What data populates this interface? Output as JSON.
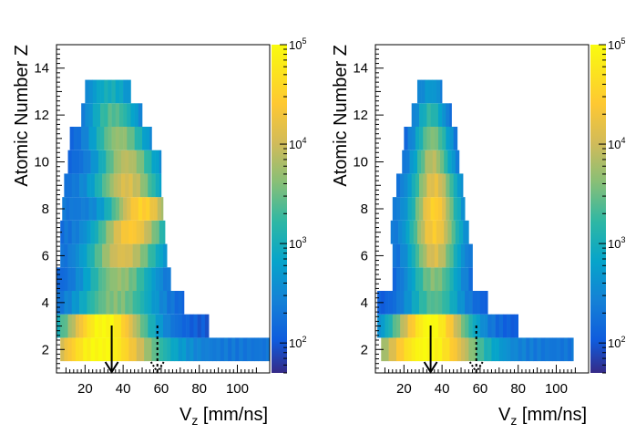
{
  "chart_data": [
    {
      "type": "heatmap",
      "panel": "left",
      "xlabel_main": "V",
      "xlabel_sub": "z",
      "xlabel_unit": " [mm/ns]",
      "ylabel": "Atomic Number Z",
      "xlim": [
        5,
        117
      ],
      "ylim": [
        1,
        15
      ],
      "x_ticks": [
        20,
        40,
        60,
        80,
        100
      ],
      "y_ticks": [
        2,
        4,
        6,
        8,
        10,
        12,
        14
      ],
      "color_scale": "log",
      "zlim": [
        50,
        100000
      ],
      "z_ticks": [
        100,
        1000,
        10000,
        100000
      ],
      "z_tick_labels": [
        "10^2",
        "10^3",
        "10^4",
        "10^5"
      ],
      "rows": [
        {
          "z": 2,
          "x_min": 7,
          "x_max": 117,
          "peak": 28,
          "width": 22,
          "max_log": 5.0,
          "min_log": 2.3
        },
        {
          "z": 3,
          "x_min": 5,
          "x_max": 85,
          "peak": 30,
          "width": 17,
          "max_log": 5.0,
          "min_log": 2.0
        },
        {
          "z": 4,
          "x_min": 5,
          "x_max": 72,
          "peak": 36,
          "width": 16,
          "max_log": 3.6,
          "min_log": 2.0
        },
        {
          "z": 5,
          "x_min": 5,
          "x_max": 65,
          "peak": 38,
          "width": 14,
          "max_log": 3.7,
          "min_log": 2.0
        },
        {
          "z": 6,
          "x_min": 7,
          "x_max": 63,
          "peak": 40,
          "width": 14,
          "max_log": 4.1,
          "min_log": 2.1
        },
        {
          "z": 7,
          "x_min": 7,
          "x_max": 62,
          "peak": 44,
          "width": 13,
          "max_log": 4.4,
          "min_log": 2.2
        },
        {
          "z": 8,
          "x_min": 8,
          "x_max": 61,
          "peak": 50,
          "width": 12,
          "max_log": 4.5,
          "min_log": 2.3
        },
        {
          "z": 9,
          "x_min": 9,
          "x_max": 60,
          "peak": 42,
          "width": 12,
          "max_log": 4.1,
          "min_log": 2.2
        },
        {
          "z": 10,
          "x_min": 11,
          "x_max": 60,
          "peak": 42,
          "width": 11,
          "max_log": 3.9,
          "min_log": 2.1
        },
        {
          "z": 11,
          "x_min": 12,
          "x_max": 55,
          "peak": 38,
          "width": 11,
          "max_log": 3.7,
          "min_log": 2.0
        },
        {
          "z": 12,
          "x_min": 18,
          "x_max": 50,
          "peak": 35,
          "width": 10,
          "max_log": 3.4,
          "min_log": 2.0
        },
        {
          "z": 13,
          "x_min": 20,
          "x_max": 44,
          "peak": 33,
          "width": 10,
          "max_log": 3.0,
          "min_log": 2.0
        }
      ],
      "markers": [
        {
          "x": 34,
          "style": "solid"
        },
        {
          "x": 58,
          "style": "dashed"
        }
      ]
    },
    {
      "type": "heatmap",
      "panel": "right",
      "xlabel_main": "V",
      "xlabel_sub": "z",
      "xlabel_unit": " [mm/ns]",
      "ylabel": "Atomic Number Z",
      "xlim": [
        5,
        117
      ],
      "ylim": [
        1,
        15
      ],
      "x_ticks": [
        20,
        40,
        60,
        80,
        100
      ],
      "y_ticks": [
        2,
        4,
        6,
        8,
        10,
        12,
        14
      ],
      "color_scale": "log",
      "zlim": [
        50,
        100000
      ],
      "z_ticks": [
        100,
        1000,
        10000,
        100000
      ],
      "z_tick_labels": [
        "10^2",
        "10^3",
        "10^4",
        "10^5"
      ],
      "rows": [
        {
          "z": 2,
          "x_min": 8,
          "x_max": 109,
          "peak": 32,
          "width": 20,
          "max_log": 5.0,
          "min_log": 2.3
        },
        {
          "z": 3,
          "x_min": 6,
          "x_max": 80,
          "peak": 34,
          "width": 15,
          "max_log": 5.0,
          "min_log": 2.0
        },
        {
          "z": 4,
          "x_min": 6,
          "x_max": 64,
          "peak": 36,
          "width": 11,
          "max_log": 3.4,
          "min_log": 2.0
        },
        {
          "z": 5,
          "x_min": 14,
          "x_max": 56,
          "peak": 36,
          "width": 10,
          "max_log": 3.6,
          "min_log": 2.0
        },
        {
          "z": 6,
          "x_min": 14,
          "x_max": 56,
          "peak": 36,
          "width": 9,
          "max_log": 4.1,
          "min_log": 2.1
        },
        {
          "z": 7,
          "x_min": 13,
          "x_max": 54,
          "peak": 36,
          "width": 9,
          "max_log": 4.4,
          "min_log": 2.2
        },
        {
          "z": 8,
          "x_min": 14,
          "x_max": 52,
          "peak": 36,
          "width": 8,
          "max_log": 4.5,
          "min_log": 2.3
        },
        {
          "z": 9,
          "x_min": 16,
          "x_max": 51,
          "peak": 36,
          "width": 8,
          "max_log": 4.2,
          "min_log": 2.2
        },
        {
          "z": 10,
          "x_min": 19,
          "x_max": 49,
          "peak": 35,
          "width": 7,
          "max_log": 3.9,
          "min_log": 2.1
        },
        {
          "z": 11,
          "x_min": 20,
          "x_max": 48,
          "peak": 35,
          "width": 7,
          "max_log": 3.6,
          "min_log": 2.0
        },
        {
          "z": 12,
          "x_min": 24,
          "x_max": 45,
          "peak": 34,
          "width": 6,
          "max_log": 3.2,
          "min_log": 2.0
        },
        {
          "z": 13,
          "x_min": 27,
          "x_max": 40,
          "peak": 34,
          "width": 6,
          "max_log": 2.7,
          "min_log": 2.0
        }
      ],
      "markers": [
        {
          "x": 34,
          "style": "solid"
        },
        {
          "x": 58,
          "style": "dashed"
        }
      ]
    }
  ]
}
